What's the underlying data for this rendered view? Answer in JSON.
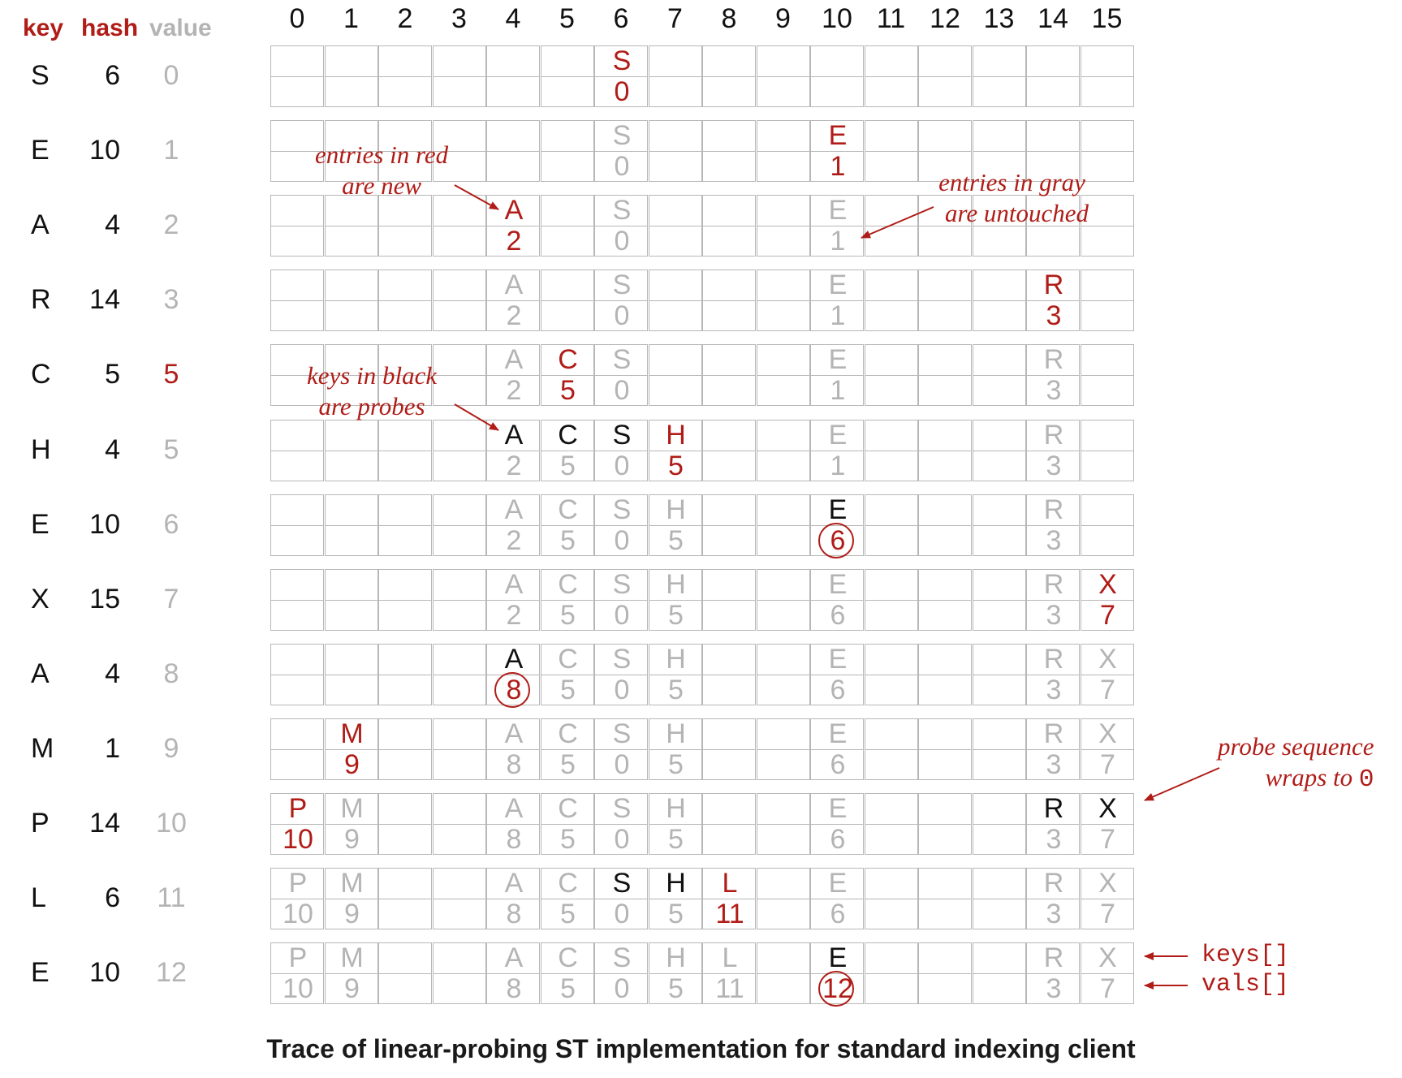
{
  "colors": {
    "red": "#b01c17",
    "black": "#111111",
    "gray": "#b4b4b4",
    "grid": "#b7b7b7"
  },
  "headers": {
    "key": "key",
    "hash": "hash",
    "value": "value"
  },
  "indices": [
    "0",
    "1",
    "2",
    "3",
    "4",
    "5",
    "6",
    "7",
    "8",
    "9",
    "10",
    "11",
    "12",
    "13",
    "14",
    "15"
  ],
  "steps": [
    {
      "key": "S",
      "hash": "6",
      "value": "0",
      "value_style": "gray",
      "cells": [
        {
          "i": 6,
          "k": "S",
          "kc": "red",
          "v": "0",
          "vc": "red"
        }
      ]
    },
    {
      "key": "E",
      "hash": "10",
      "value": "1",
      "value_style": "gray",
      "cells": [
        {
          "i": 6,
          "k": "S",
          "kc": "gray",
          "v": "0",
          "vc": "gray"
        },
        {
          "i": 10,
          "k": "E",
          "kc": "red",
          "v": "1",
          "vc": "red"
        }
      ]
    },
    {
      "key": "A",
      "hash": "4",
      "value": "2",
      "value_style": "gray",
      "cells": [
        {
          "i": 4,
          "k": "A",
          "kc": "red",
          "v": "2",
          "vc": "red"
        },
        {
          "i": 6,
          "k": "S",
          "kc": "gray",
          "v": "0",
          "vc": "gray"
        },
        {
          "i": 10,
          "k": "E",
          "kc": "gray",
          "v": "1",
          "vc": "gray"
        }
      ]
    },
    {
      "key": "R",
      "hash": "14",
      "value": "3",
      "value_style": "gray",
      "cells": [
        {
          "i": 4,
          "k": "A",
          "kc": "gray",
          "v": "2",
          "vc": "gray"
        },
        {
          "i": 6,
          "k": "S",
          "kc": "gray",
          "v": "0",
          "vc": "gray"
        },
        {
          "i": 10,
          "k": "E",
          "kc": "gray",
          "v": "1",
          "vc": "gray"
        },
        {
          "i": 14,
          "k": "R",
          "kc": "red",
          "v": "3",
          "vc": "red"
        }
      ]
    },
    {
      "key": "C",
      "hash": "5",
      "value": "5",
      "value_style": "red",
      "cells": [
        {
          "i": 4,
          "k": "A",
          "kc": "gray",
          "v": "2",
          "vc": "gray"
        },
        {
          "i": 5,
          "k": "C",
          "kc": "red",
          "v": "5",
          "vc": "red"
        },
        {
          "i": 6,
          "k": "S",
          "kc": "gray",
          "v": "0",
          "vc": "gray"
        },
        {
          "i": 10,
          "k": "E",
          "kc": "gray",
          "v": "1",
          "vc": "gray"
        },
        {
          "i": 14,
          "k": "R",
          "kc": "gray",
          "v": "3",
          "vc": "gray"
        }
      ]
    },
    {
      "key": "H",
      "hash": "4",
      "value": "5",
      "value_style": "gray",
      "cells": [
        {
          "i": 4,
          "k": "A",
          "kc": "black",
          "v": "2",
          "vc": "gray"
        },
        {
          "i": 5,
          "k": "C",
          "kc": "black",
          "v": "5",
          "vc": "gray"
        },
        {
          "i": 6,
          "k": "S",
          "kc": "black",
          "v": "0",
          "vc": "gray"
        },
        {
          "i": 7,
          "k": "H",
          "kc": "red",
          "v": "5",
          "vc": "red"
        },
        {
          "i": 10,
          "k": "E",
          "kc": "gray",
          "v": "1",
          "vc": "gray"
        },
        {
          "i": 14,
          "k": "R",
          "kc": "gray",
          "v": "3",
          "vc": "gray"
        }
      ]
    },
    {
      "key": "E",
      "hash": "10",
      "value": "6",
      "value_style": "gray",
      "cells": [
        {
          "i": 4,
          "k": "A",
          "kc": "gray",
          "v": "2",
          "vc": "gray"
        },
        {
          "i": 5,
          "k": "C",
          "kc": "gray",
          "v": "5",
          "vc": "gray"
        },
        {
          "i": 6,
          "k": "S",
          "kc": "gray",
          "v": "0",
          "vc": "gray"
        },
        {
          "i": 7,
          "k": "H",
          "kc": "gray",
          "v": "5",
          "vc": "gray"
        },
        {
          "i": 10,
          "k": "E",
          "kc": "black",
          "v": "6",
          "vc": "red",
          "circled": true
        },
        {
          "i": 14,
          "k": "R",
          "kc": "gray",
          "v": "3",
          "vc": "gray"
        }
      ]
    },
    {
      "key": "X",
      "hash": "15",
      "value": "7",
      "value_style": "gray",
      "cells": [
        {
          "i": 4,
          "k": "A",
          "kc": "gray",
          "v": "2",
          "vc": "gray"
        },
        {
          "i": 5,
          "k": "C",
          "kc": "gray",
          "v": "5",
          "vc": "gray"
        },
        {
          "i": 6,
          "k": "S",
          "kc": "gray",
          "v": "0",
          "vc": "gray"
        },
        {
          "i": 7,
          "k": "H",
          "kc": "gray",
          "v": "5",
          "vc": "gray"
        },
        {
          "i": 10,
          "k": "E",
          "kc": "gray",
          "v": "6",
          "vc": "gray"
        },
        {
          "i": 14,
          "k": "R",
          "kc": "gray",
          "v": "3",
          "vc": "gray"
        },
        {
          "i": 15,
          "k": "X",
          "kc": "red",
          "v": "7",
          "vc": "red"
        }
      ]
    },
    {
      "key": "A",
      "hash": "4",
      "value": "8",
      "value_style": "gray",
      "cells": [
        {
          "i": 4,
          "k": "A",
          "kc": "black",
          "v": "8",
          "vc": "red",
          "circled": true
        },
        {
          "i": 5,
          "k": "C",
          "kc": "gray",
          "v": "5",
          "vc": "gray"
        },
        {
          "i": 6,
          "k": "S",
          "kc": "gray",
          "v": "0",
          "vc": "gray"
        },
        {
          "i": 7,
          "k": "H",
          "kc": "gray",
          "v": "5",
          "vc": "gray"
        },
        {
          "i": 10,
          "k": "E",
          "kc": "gray",
          "v": "6",
          "vc": "gray"
        },
        {
          "i": 14,
          "k": "R",
          "kc": "gray",
          "v": "3",
          "vc": "gray"
        },
        {
          "i": 15,
          "k": "X",
          "kc": "gray",
          "v": "7",
          "vc": "gray"
        }
      ]
    },
    {
      "key": "M",
      "hash": "1",
      "value": "9",
      "value_style": "gray",
      "cells": [
        {
          "i": 1,
          "k": "M",
          "kc": "red",
          "v": "9",
          "vc": "red"
        },
        {
          "i": 4,
          "k": "A",
          "kc": "gray",
          "v": "8",
          "vc": "gray"
        },
        {
          "i": 5,
          "k": "C",
          "kc": "gray",
          "v": "5",
          "vc": "gray"
        },
        {
          "i": 6,
          "k": "S",
          "kc": "gray",
          "v": "0",
          "vc": "gray"
        },
        {
          "i": 7,
          "k": "H",
          "kc": "gray",
          "v": "5",
          "vc": "gray"
        },
        {
          "i": 10,
          "k": "E",
          "kc": "gray",
          "v": "6",
          "vc": "gray"
        },
        {
          "i": 14,
          "k": "R",
          "kc": "gray",
          "v": "3",
          "vc": "gray"
        },
        {
          "i": 15,
          "k": "X",
          "kc": "gray",
          "v": "7",
          "vc": "gray"
        }
      ]
    },
    {
      "key": "P",
      "hash": "14",
      "value": "10",
      "value_style": "gray",
      "cells": [
        {
          "i": 0,
          "k": "P",
          "kc": "red",
          "v": "10",
          "vc": "red"
        },
        {
          "i": 1,
          "k": "M",
          "kc": "gray",
          "v": "9",
          "vc": "gray"
        },
        {
          "i": 4,
          "k": "A",
          "kc": "gray",
          "v": "8",
          "vc": "gray"
        },
        {
          "i": 5,
          "k": "C",
          "kc": "gray",
          "v": "5",
          "vc": "gray"
        },
        {
          "i": 6,
          "k": "S",
          "kc": "gray",
          "v": "0",
          "vc": "gray"
        },
        {
          "i": 7,
          "k": "H",
          "kc": "gray",
          "v": "5",
          "vc": "gray"
        },
        {
          "i": 10,
          "k": "E",
          "kc": "gray",
          "v": "6",
          "vc": "gray"
        },
        {
          "i": 14,
          "k": "R",
          "kc": "black",
          "v": "3",
          "vc": "gray"
        },
        {
          "i": 15,
          "k": "X",
          "kc": "black",
          "v": "7",
          "vc": "gray"
        }
      ]
    },
    {
      "key": "L",
      "hash": "6",
      "value": "11",
      "value_style": "gray",
      "cells": [
        {
          "i": 0,
          "k": "P",
          "kc": "gray",
          "v": "10",
          "vc": "gray"
        },
        {
          "i": 1,
          "k": "M",
          "kc": "gray",
          "v": "9",
          "vc": "gray"
        },
        {
          "i": 4,
          "k": "A",
          "kc": "gray",
          "v": "8",
          "vc": "gray"
        },
        {
          "i": 5,
          "k": "C",
          "kc": "gray",
          "v": "5",
          "vc": "gray"
        },
        {
          "i": 6,
          "k": "S",
          "kc": "black",
          "v": "0",
          "vc": "gray"
        },
        {
          "i": 7,
          "k": "H",
          "kc": "black",
          "v": "5",
          "vc": "gray"
        },
        {
          "i": 8,
          "k": "L",
          "kc": "red",
          "v": "11",
          "vc": "red"
        },
        {
          "i": 10,
          "k": "E",
          "kc": "gray",
          "v": "6",
          "vc": "gray"
        },
        {
          "i": 14,
          "k": "R",
          "kc": "gray",
          "v": "3",
          "vc": "gray"
        },
        {
          "i": 15,
          "k": "X",
          "kc": "gray",
          "v": "7",
          "vc": "gray"
        }
      ]
    },
    {
      "key": "E",
      "hash": "10",
      "value": "12",
      "value_style": "gray",
      "cells": [
        {
          "i": 0,
          "k": "P",
          "kc": "gray",
          "v": "10",
          "vc": "gray"
        },
        {
          "i": 1,
          "k": "M",
          "kc": "gray",
          "v": "9",
          "vc": "gray"
        },
        {
          "i": 4,
          "k": "A",
          "kc": "gray",
          "v": "8",
          "vc": "gray"
        },
        {
          "i": 5,
          "k": "C",
          "kc": "gray",
          "v": "5",
          "vc": "gray"
        },
        {
          "i": 6,
          "k": "S",
          "kc": "gray",
          "v": "0",
          "vc": "gray"
        },
        {
          "i": 7,
          "k": "H",
          "kc": "gray",
          "v": "5",
          "vc": "gray"
        },
        {
          "i": 8,
          "k": "L",
          "kc": "gray",
          "v": "11",
          "vc": "gray"
        },
        {
          "i": 10,
          "k": "E",
          "kc": "black",
          "v": "12",
          "vc": "red",
          "circled": true
        },
        {
          "i": 14,
          "k": "R",
          "kc": "gray",
          "v": "3",
          "vc": "gray"
        },
        {
          "i": 15,
          "k": "X",
          "kc": "gray",
          "v": "7",
          "vc": "gray"
        }
      ]
    }
  ],
  "annotations": {
    "red_new": [
      "entries in red",
      "are new"
    ],
    "gray_untouched": [
      "entries in gray",
      "are untouched"
    ],
    "black_probes": [
      "keys in black",
      "are probes"
    ],
    "wraps": [
      "probe sequence",
      "wraps to ",
      "0"
    ]
  },
  "side_labels": {
    "keys": "keys[]",
    "vals": "vals[]"
  },
  "caption": "Trace of  linear-probing ST implementation for standard indexing client"
}
